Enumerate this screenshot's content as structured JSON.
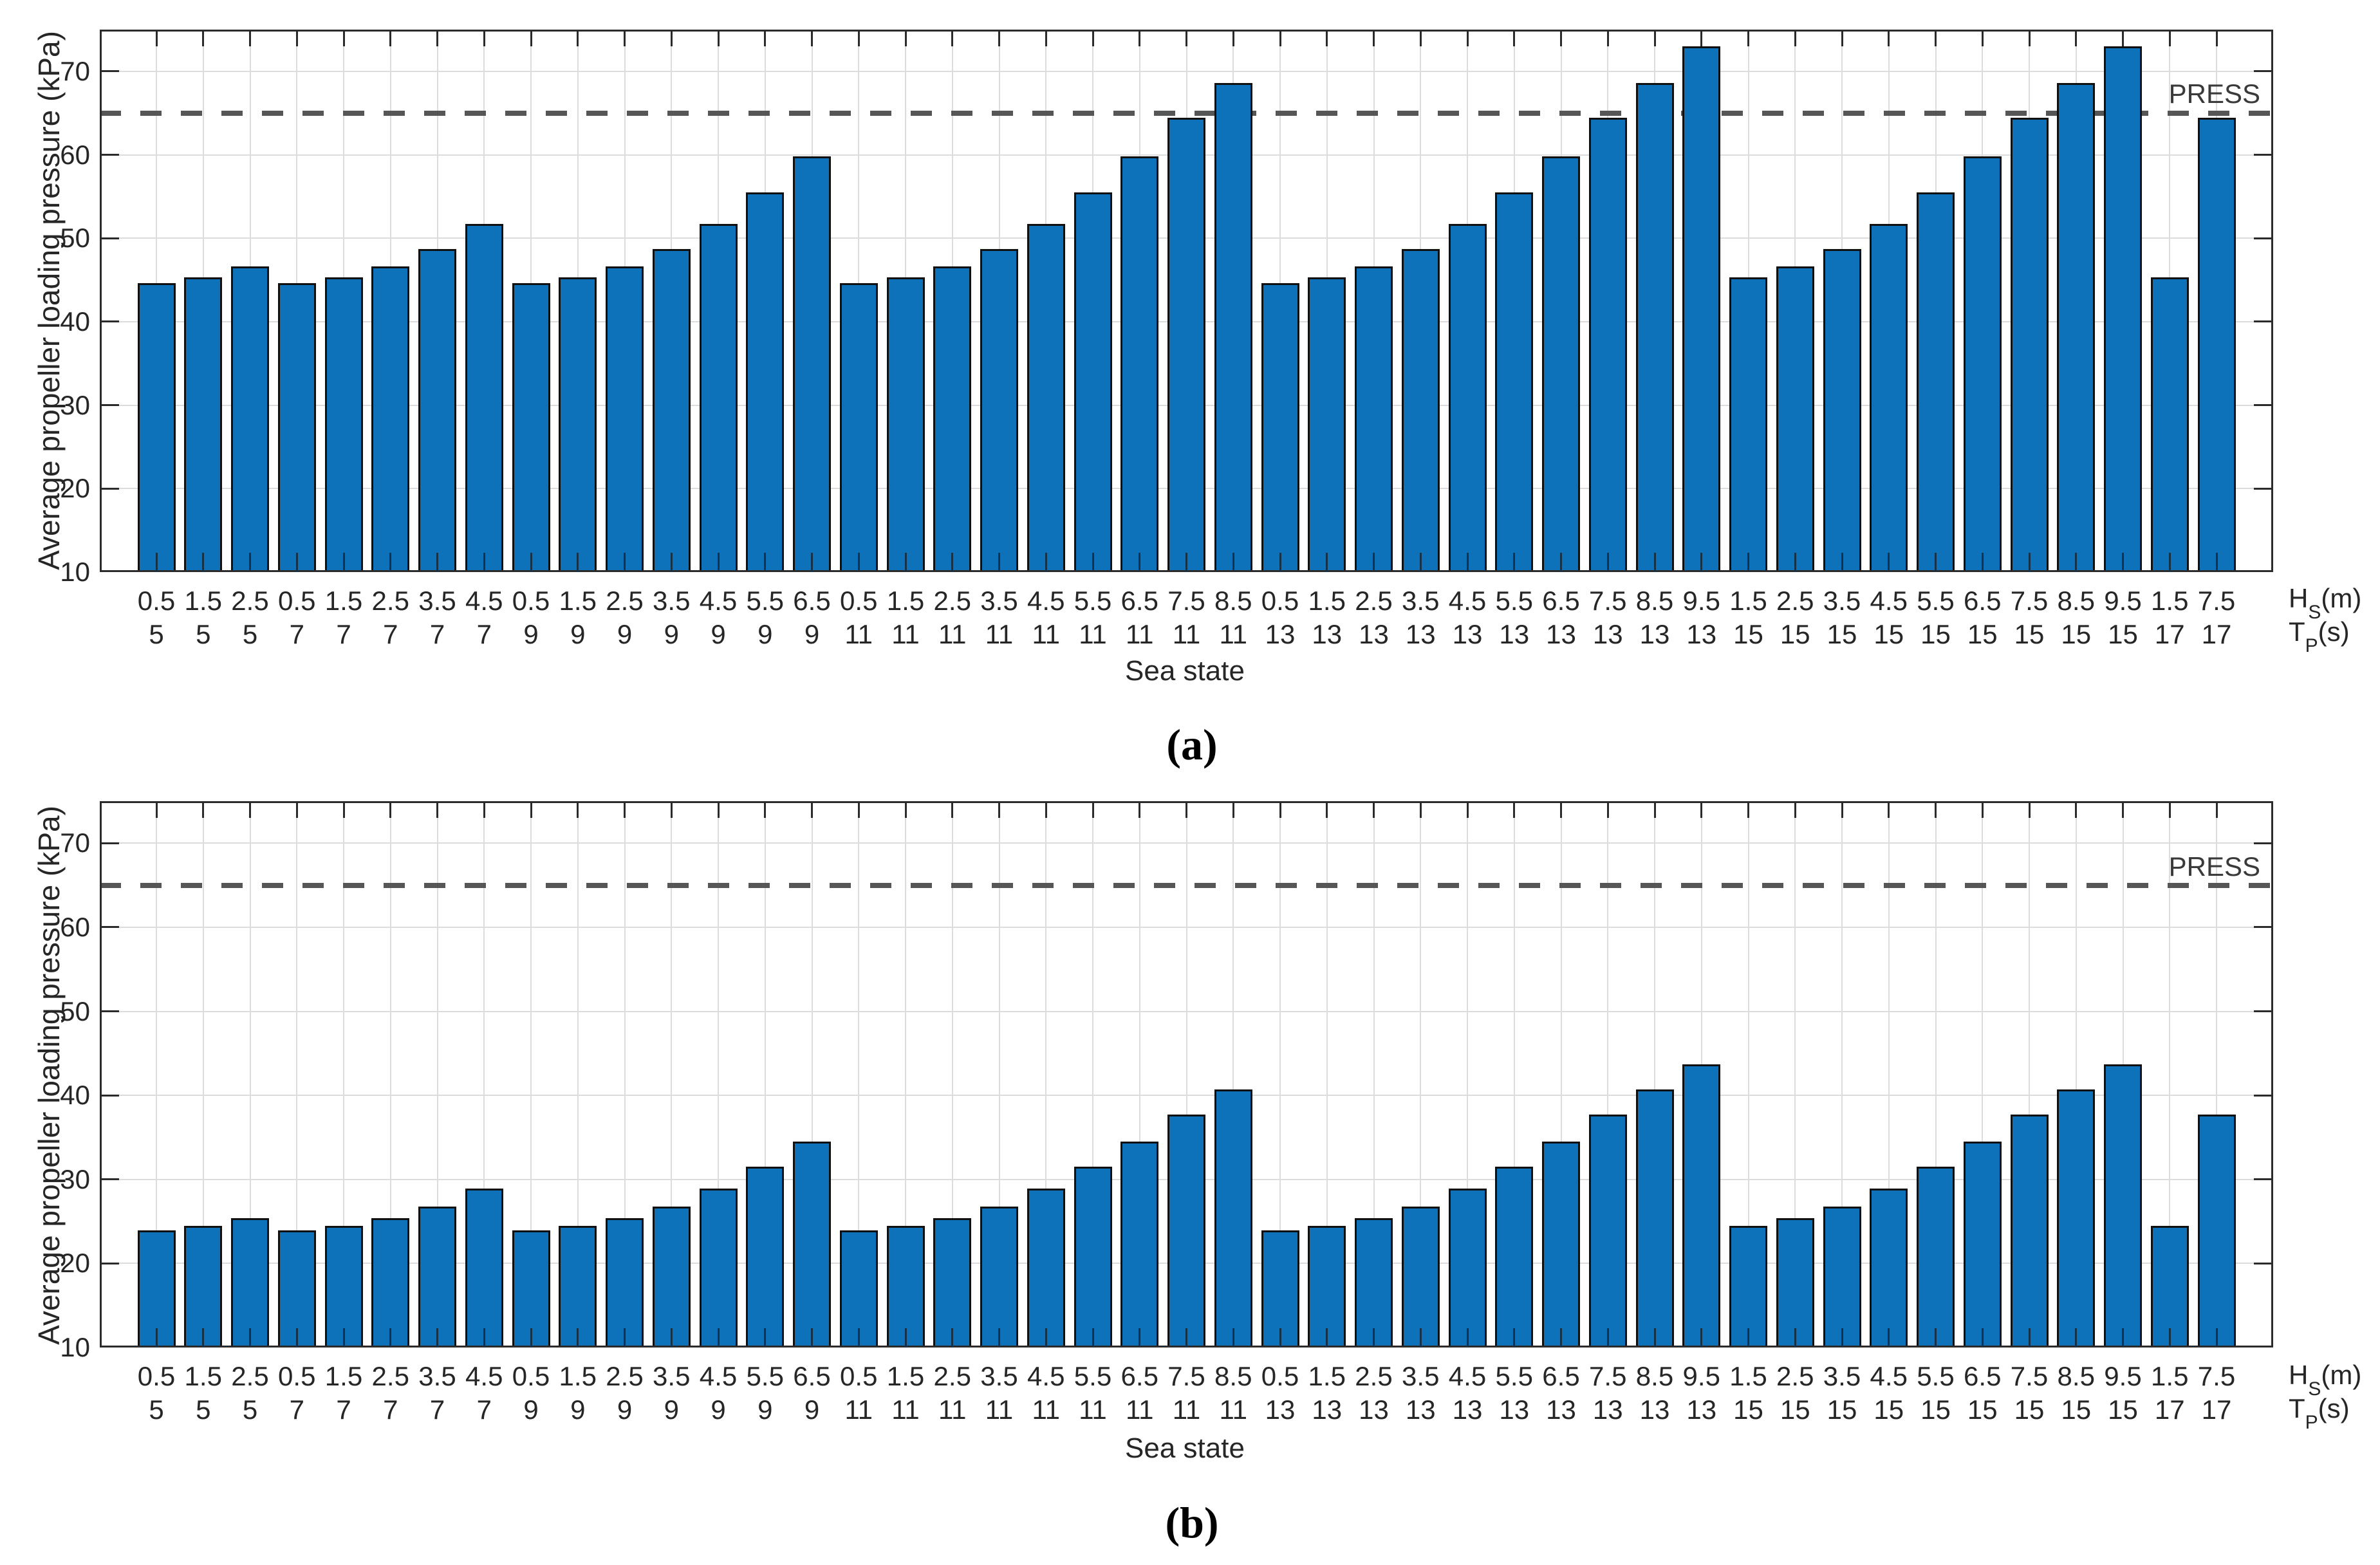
{
  "figure": {
    "background": "#ffffff",
    "colors": {
      "bar_fill": "#0e72ba",
      "bar_edge": "#101010",
      "grid": "#dcdcdc",
      "axis": "#2b2b2b",
      "dashed_line": "#565656",
      "text": "#262626"
    }
  },
  "axis_right_labels": {
    "row1": {
      "base": "H",
      "sub": "S",
      "unit": "(m)"
    },
    "row2": {
      "base": "T",
      "sub": "P",
      "unit": "(s)"
    }
  },
  "chart_data": [
    {
      "id": "a",
      "type": "bar",
      "panel_label": "(a)",
      "xlabel": "Sea state",
      "ylabel": "Average propeller loading pressure (kPa)",
      "ylim": [
        10,
        75
      ],
      "yticks": [
        10,
        20,
        30,
        40,
        50,
        60,
        70
      ],
      "grid": true,
      "ref_line": {
        "value": 65,
        "label": "PRESS"
      },
      "categories_hs": [
        "0.5",
        "1.5",
        "2.5",
        "0.5",
        "1.5",
        "2.5",
        "3.5",
        "4.5",
        "0.5",
        "1.5",
        "2.5",
        "3.5",
        "4.5",
        "5.5",
        "6.5",
        "0.5",
        "1.5",
        "2.5",
        "3.5",
        "4.5",
        "5.5",
        "6.5",
        "7.5",
        "8.5",
        "0.5",
        "1.5",
        "2.5",
        "3.5",
        "4.5",
        "5.5",
        "6.5",
        "7.5",
        "8.5",
        "9.5",
        "1.5",
        "2.5",
        "3.5",
        "4.5",
        "5.5",
        "6.5",
        "7.5",
        "8.5",
        "9.5",
        "1.5",
        "7.5"
      ],
      "categories_tp": [
        "5",
        "5",
        "5",
        "7",
        "7",
        "7",
        "7",
        "7",
        "9",
        "9",
        "9",
        "9",
        "9",
        "9",
        "9",
        "11",
        "11",
        "11",
        "11",
        "11",
        "11",
        "11",
        "11",
        "11",
        "13",
        "13",
        "13",
        "13",
        "13",
        "13",
        "13",
        "13",
        "13",
        "13",
        "15",
        "15",
        "15",
        "15",
        "15",
        "15",
        "15",
        "15",
        "15",
        "17",
        "17"
      ],
      "values": [
        44.6,
        45.3,
        46.6,
        44.6,
        45.3,
        46.6,
        48.7,
        51.7,
        44.6,
        45.3,
        46.6,
        48.7,
        51.7,
        55.5,
        59.8,
        44.6,
        45.3,
        46.6,
        48.7,
        51.7,
        55.5,
        59.8,
        64.4,
        68.6,
        44.6,
        45.3,
        46.6,
        48.7,
        51.7,
        55.5,
        59.8,
        64.4,
        68.6,
        73.0,
        45.3,
        46.6,
        48.7,
        51.7,
        55.5,
        59.8,
        64.4,
        68.6,
        73.0,
        45.3,
        64.4
      ]
    },
    {
      "id": "b",
      "type": "bar",
      "panel_label": "(b)",
      "xlabel": "Sea state",
      "ylabel": "Average propeller loading pressure (kPa)",
      "ylim": [
        10,
        75
      ],
      "yticks": [
        10,
        20,
        30,
        40,
        50,
        60,
        70
      ],
      "grid": true,
      "ref_line": {
        "value": 65,
        "label": "PRESS"
      },
      "categories_hs": [
        "0.5",
        "1.5",
        "2.5",
        "0.5",
        "1.5",
        "2.5",
        "3.5",
        "4.5",
        "0.5",
        "1.5",
        "2.5",
        "3.5",
        "4.5",
        "5.5",
        "6.5",
        "0.5",
        "1.5",
        "2.5",
        "3.5",
        "4.5",
        "5.5",
        "6.5",
        "7.5",
        "8.5",
        "0.5",
        "1.5",
        "2.5",
        "3.5",
        "4.5",
        "5.5",
        "6.5",
        "7.5",
        "8.5",
        "9.5",
        "1.5",
        "2.5",
        "3.5",
        "4.5",
        "5.5",
        "6.5",
        "7.5",
        "8.5",
        "9.5",
        "1.5",
        "7.5"
      ],
      "categories_tp": [
        "5",
        "5",
        "5",
        "7",
        "7",
        "7",
        "7",
        "7",
        "9",
        "9",
        "9",
        "9",
        "9",
        "9",
        "9",
        "11",
        "11",
        "11",
        "11",
        "11",
        "11",
        "11",
        "11",
        "11",
        "13",
        "13",
        "13",
        "13",
        "13",
        "13",
        "13",
        "13",
        "13",
        "13",
        "15",
        "15",
        "15",
        "15",
        "15",
        "15",
        "15",
        "15",
        "15",
        "17",
        "17"
      ],
      "values": [
        23.9,
        24.5,
        25.4,
        23.9,
        24.5,
        25.4,
        26.8,
        28.9,
        23.9,
        24.5,
        25.4,
        26.8,
        28.9,
        31.5,
        34.5,
        23.9,
        24.5,
        25.4,
        26.8,
        28.9,
        31.5,
        34.5,
        37.7,
        40.7,
        23.9,
        24.5,
        25.4,
        26.8,
        28.9,
        31.5,
        34.5,
        37.7,
        40.7,
        43.7,
        24.5,
        25.4,
        26.8,
        28.9,
        31.5,
        34.5,
        37.7,
        40.7,
        43.7,
        24.5,
        37.7
      ]
    }
  ]
}
